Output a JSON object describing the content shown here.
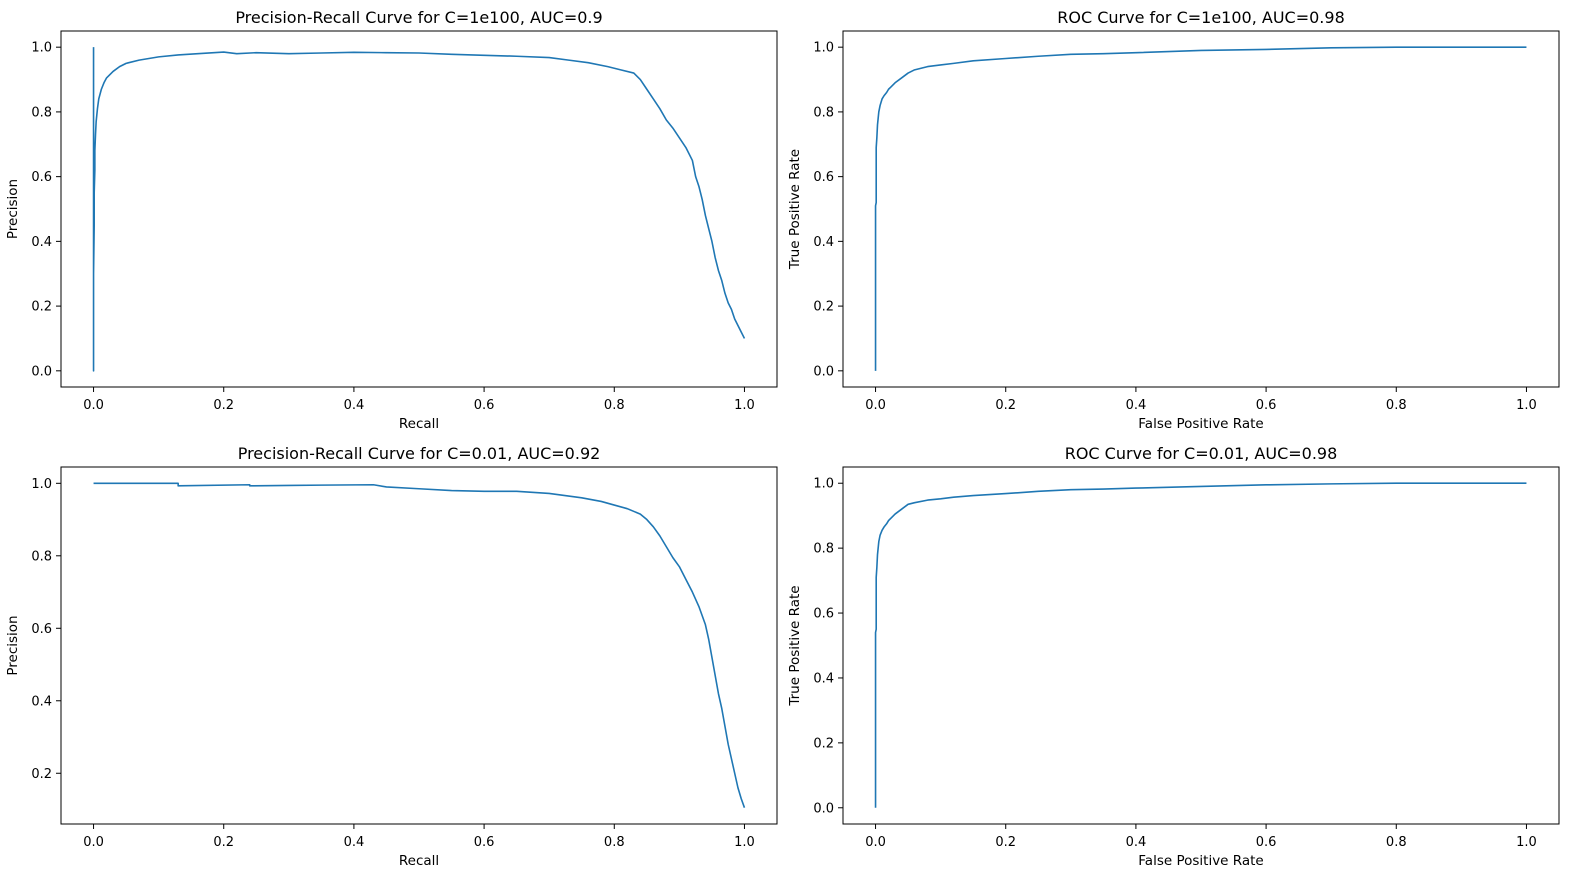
{
  "chart_data": [
    {
      "type": "line",
      "title": "Precision-Recall Curve for C=1e100, AUC=0.9",
      "xlabel": "Recall",
      "ylabel": "Precision",
      "xlim": [
        -0.05,
        1.05
      ],
      "ylim": [
        -0.05,
        1.05
      ],
      "xticks": [
        0.0,
        0.2,
        0.4,
        0.6,
        0.8,
        1.0
      ],
      "yticks": [
        0.0,
        0.2,
        0.4,
        0.6,
        0.8,
        1.0
      ],
      "grid": false,
      "color": "#1f77b4",
      "series": [
        {
          "x": [
            0.0,
            0.0,
            0.0,
            0.001,
            0.001,
            0.002,
            0.002,
            0.003,
            0.004,
            0.006,
            0.008,
            0.012,
            0.016,
            0.02,
            0.03,
            0.04,
            0.05,
            0.07,
            0.1,
            0.13,
            0.16,
            0.2,
            0.22,
            0.25,
            0.3,
            0.35,
            0.4,
            0.45,
            0.5,
            0.55,
            0.6,
            0.65,
            0.7,
            0.73,
            0.76,
            0.79,
            0.81,
            0.83,
            0.84,
            0.85,
            0.86,
            0.87,
            0.88,
            0.89,
            0.9,
            0.91,
            0.92,
            0.925,
            0.93,
            0.935,
            0.94,
            0.945,
            0.95,
            0.955,
            0.96,
            0.965,
            0.97,
            0.975,
            0.98,
            0.985,
            0.99,
            0.995,
            1.0
          ],
          "y": [
            1.0,
            0.0,
            0.3,
            0.45,
            0.55,
            0.62,
            0.68,
            0.73,
            0.77,
            0.81,
            0.84,
            0.87,
            0.89,
            0.905,
            0.925,
            0.94,
            0.95,
            0.96,
            0.97,
            0.976,
            0.98,
            0.985,
            0.98,
            0.983,
            0.98,
            0.982,
            0.984,
            0.983,
            0.982,
            0.978,
            0.975,
            0.972,
            0.968,
            0.96,
            0.952,
            0.94,
            0.93,
            0.92,
            0.9,
            0.87,
            0.84,
            0.81,
            0.775,
            0.75,
            0.72,
            0.69,
            0.65,
            0.6,
            0.57,
            0.53,
            0.48,
            0.44,
            0.4,
            0.35,
            0.31,
            0.28,
            0.24,
            0.21,
            0.19,
            0.16,
            0.14,
            0.12,
            0.1
          ]
        }
      ]
    },
    {
      "type": "line",
      "title": "ROC Curve for C=1e100, AUC=0.98",
      "xlabel": "False Positive Rate",
      "ylabel": "True Positive Rate",
      "xlim": [
        -0.05,
        1.05
      ],
      "ylim": [
        -0.05,
        1.05
      ],
      "xticks": [
        0.0,
        0.2,
        0.4,
        0.6,
        0.8,
        1.0
      ],
      "yticks": [
        0.0,
        0.2,
        0.4,
        0.6,
        0.8,
        1.0
      ],
      "grid": false,
      "color": "#1f77b4",
      "series": [
        {
          "x": [
            0.0,
            0.0,
            0.001,
            0.001,
            0.002,
            0.003,
            0.004,
            0.005,
            0.007,
            0.01,
            0.013,
            0.017,
            0.02,
            0.025,
            0.03,
            0.04,
            0.05,
            0.06,
            0.08,
            0.1,
            0.12,
            0.15,
            0.2,
            0.25,
            0.3,
            0.35,
            0.4,
            0.5,
            0.6,
            0.7,
            0.8,
            0.9,
            1.0
          ],
          "y": [
            0.0,
            0.51,
            0.52,
            0.69,
            0.72,
            0.76,
            0.78,
            0.8,
            0.82,
            0.84,
            0.85,
            0.86,
            0.87,
            0.88,
            0.89,
            0.905,
            0.92,
            0.93,
            0.94,
            0.945,
            0.95,
            0.958,
            0.965,
            0.972,
            0.978,
            0.98,
            0.983,
            0.99,
            0.993,
            0.998,
            1.0,
            1.0,
            1.0
          ]
        }
      ]
    },
    {
      "type": "line",
      "title": "Precision-Recall Curve for C=0.01, AUC=0.92",
      "xlabel": "Recall",
      "ylabel": "Precision",
      "xlim": [
        -0.05,
        1.05
      ],
      "ylim": [
        0.06,
        1.045
      ],
      "xticks": [
        0.0,
        0.2,
        0.4,
        0.6,
        0.8,
        1.0
      ],
      "yticks": [
        0.2,
        0.4,
        0.6,
        0.8,
        1.0
      ],
      "grid": false,
      "color": "#1f77b4",
      "series": [
        {
          "x": [
            0.0,
            0.13,
            0.13,
            0.24,
            0.24,
            0.3,
            0.35,
            0.43,
            0.45,
            0.5,
            0.55,
            0.6,
            0.65,
            0.7,
            0.75,
            0.78,
            0.8,
            0.82,
            0.84,
            0.85,
            0.86,
            0.87,
            0.88,
            0.89,
            0.9,
            0.91,
            0.92,
            0.93,
            0.94,
            0.945,
            0.95,
            0.955,
            0.96,
            0.965,
            0.97,
            0.975,
            0.98,
            0.985,
            0.99,
            0.995,
            1.0
          ],
          "y": [
            1.0,
            1.0,
            0.993,
            0.996,
            0.993,
            0.994,
            0.995,
            0.996,
            0.99,
            0.985,
            0.98,
            0.978,
            0.978,
            0.972,
            0.96,
            0.95,
            0.94,
            0.93,
            0.915,
            0.9,
            0.88,
            0.855,
            0.825,
            0.795,
            0.77,
            0.735,
            0.7,
            0.66,
            0.61,
            0.57,
            0.52,
            0.47,
            0.42,
            0.38,
            0.33,
            0.28,
            0.24,
            0.2,
            0.16,
            0.13,
            0.105
          ]
        }
      ]
    },
    {
      "type": "line",
      "title": "ROC Curve for C=0.01, AUC=0.98",
      "xlabel": "False Positive Rate",
      "ylabel": "True Positive Rate",
      "xlim": [
        -0.05,
        1.05
      ],
      "ylim": [
        -0.05,
        1.05
      ],
      "xticks": [
        0.0,
        0.2,
        0.4,
        0.6,
        0.8,
        1.0
      ],
      "yticks": [
        0.0,
        0.2,
        0.4,
        0.6,
        0.8,
        1.0
      ],
      "grid": false,
      "color": "#1f77b4",
      "series": [
        {
          "x": [
            0.0,
            0.0,
            0.001,
            0.001,
            0.002,
            0.003,
            0.004,
            0.005,
            0.007,
            0.01,
            0.013,
            0.017,
            0.02,
            0.025,
            0.03,
            0.04,
            0.05,
            0.06,
            0.08,
            0.1,
            0.12,
            0.15,
            0.2,
            0.25,
            0.3,
            0.35,
            0.4,
            0.5,
            0.6,
            0.7,
            0.8,
            0.9,
            1.0
          ],
          "y": [
            0.0,
            0.54,
            0.55,
            0.71,
            0.74,
            0.78,
            0.8,
            0.82,
            0.84,
            0.855,
            0.865,
            0.875,
            0.885,
            0.895,
            0.905,
            0.92,
            0.935,
            0.94,
            0.948,
            0.952,
            0.957,
            0.962,
            0.968,
            0.975,
            0.98,
            0.982,
            0.985,
            0.99,
            0.995,
            0.998,
            1.0,
            1.0,
            1.0
          ]
        }
      ]
    }
  ]
}
